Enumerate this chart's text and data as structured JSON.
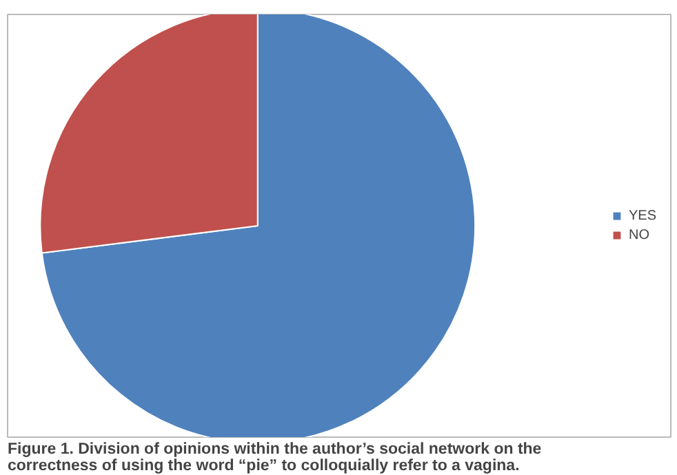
{
  "chart_data": {
    "type": "pie",
    "categories": [
      "YES",
      "NO"
    ],
    "values": [
      73,
      27
    ],
    "colors": [
      "#4f81bd",
      "#c0504d"
    ],
    "legend": "right",
    "annotations": [
      "Figure 1. Division of opinions within the author’s social network on the correctness of using the word “pie” to colloquially refer to a vagina."
    ]
  }
}
